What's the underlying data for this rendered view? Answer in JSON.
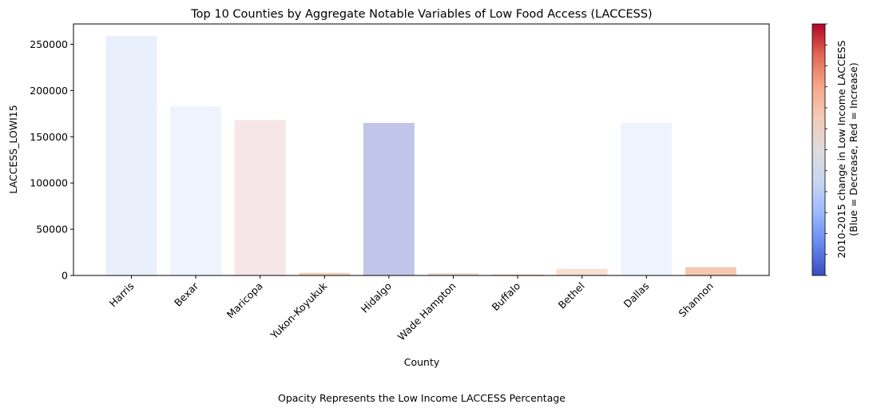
{
  "chart_data": {
    "type": "bar",
    "title": "Top 10 Counties by Aggregate Notable Variables of Low Food Access (LACCESS)",
    "xlabel": "County",
    "ylabel": "LACCESS_LOWI15",
    "ylim": [
      0,
      272000
    ],
    "yticks": [
      0,
      50000,
      100000,
      150000,
      200000,
      250000
    ],
    "categories": [
      "Harris",
      "Bexar",
      "Maricopa",
      "Yukon-Koyukuk",
      "Hidalgo",
      "Wade Hampton",
      "Buffalo",
      "Bethel",
      "Dallas",
      "Shannon"
    ],
    "values": [
      259000,
      183000,
      168000,
      2800,
      165000,
      2500,
      900,
      7000,
      165000,
      9000
    ],
    "bar_colors": [
      "#eaeffc",
      "#eef3fd",
      "#f6e6e9",
      "#f2d0c0",
      "#c0c5e9",
      "#f2dccf",
      "#efc4b1",
      "#f7dfd1",
      "#eef3fd",
      "#f6c8b0"
    ],
    "grid": false,
    "colorbar": {
      "label_line1": "2010-2015 change in Low Income LACCESS",
      "label_line2": "(Blue = Decrease, Red = Increase)",
      "colormap": "coolwarm",
      "colors": [
        "#3b4cc0",
        "#6788ee",
        "#9abbff",
        "#c9d7f0",
        "#dddddd",
        "#f2cbb7",
        "#f7a889",
        "#e26952",
        "#b40426"
      ]
    },
    "footnote": "Opacity Represents the Low Income LACCESS Percentage"
  }
}
